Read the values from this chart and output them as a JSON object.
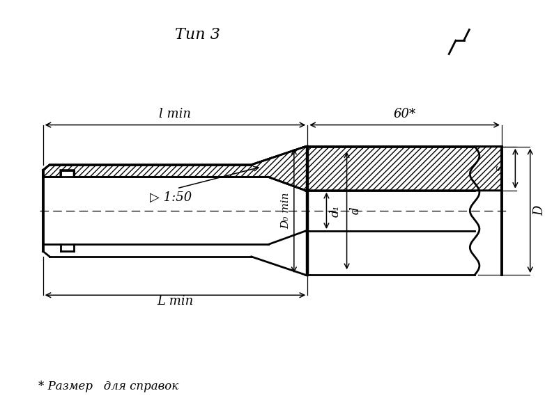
{
  "title": "Тип 3",
  "bg_color": "#ffffff",
  "note": "* Размер   для справок",
  "dim_l_min": "l min",
  "dim_60": "60*",
  "dim_s": "s",
  "dim_D0": "D₀ min",
  "dim_d1": "d₁",
  "dim_d": "d",
  "dim_D": "D",
  "dim_L_min": "L min",
  "dim_taper": "▷ 1:50",
  "fig_width": 7.82,
  "fig_height": 5.98
}
